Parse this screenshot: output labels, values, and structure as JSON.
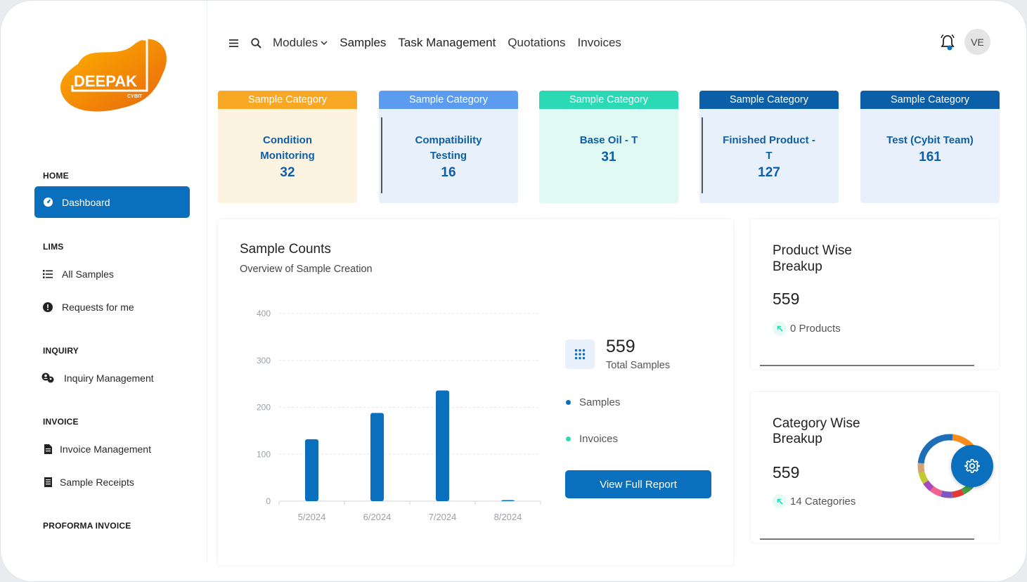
{
  "brand": {
    "name": "DEEPAK",
    "sub": "CYBIT"
  },
  "sidebar": {
    "sections": [
      {
        "title": "HOME",
        "items": [
          {
            "label": "Dashboard",
            "icon": "dashboard-icon",
            "active": true
          }
        ]
      },
      {
        "title": "LIMS",
        "items": [
          {
            "label": "All Samples",
            "icon": "list-icon"
          },
          {
            "label": "Requests for me",
            "icon": "alert-circle-icon"
          }
        ]
      },
      {
        "title": "INQUIRY",
        "items": [
          {
            "label": "Inquiry Management",
            "icon": "chat-users-icon"
          }
        ]
      },
      {
        "title": "INVOICE",
        "items": [
          {
            "label": "Invoice Management",
            "icon": "document-icon"
          },
          {
            "label": "Sample Receipts",
            "icon": "receipt-icon"
          }
        ]
      },
      {
        "title": "PROFORMA INVOICE",
        "items": []
      }
    ]
  },
  "topbar": {
    "menu_icon": "hamburger-icon",
    "search_icon": "search-icon",
    "links": [
      "Modules",
      "Samples",
      "Task Management",
      "Quotations",
      "Invoices"
    ],
    "avatar": "VE"
  },
  "categories": [
    {
      "header": "Sample Category",
      "name": "Condition Monitoring",
      "count": "32",
      "header_color": "#f9a825",
      "bg": "#fdf3e1"
    },
    {
      "header": "Sample Category",
      "name": "Compatibility Testing",
      "count": "16",
      "header_color": "#5b9cf0",
      "bg": "#e8f0fb"
    },
    {
      "header": "Sample Category",
      "name": "Base Oil - T",
      "count": "31",
      "header_color": "#2bd9b5",
      "bg": "#e0f9f3"
    },
    {
      "header": "Sample Category",
      "name": "Finished Product - T",
      "count": "127",
      "header_color": "#0a5fa8",
      "bg": "#e8f0fb"
    },
    {
      "header": "Sample Category",
      "name": "Test (Cybit Team)",
      "count": "161",
      "header_color": "#0a5fa8",
      "bg": "#e8f0fb"
    }
  ],
  "sample_counts": {
    "title": "Sample Counts",
    "subtitle": "Overview of Sample Creation",
    "total": "559",
    "total_label": "Total Samples",
    "legend": [
      {
        "label": "Samples",
        "color": "#0a6fbd"
      },
      {
        "label": "Invoices",
        "color": "#2bd9b5"
      }
    ],
    "button": "View Full Report"
  },
  "chart_data": {
    "type": "bar",
    "categories": [
      "5/2024",
      "6/2024",
      "7/2024",
      "8/2024"
    ],
    "series": [
      {
        "name": "Samples",
        "values": [
          132,
          188,
          236,
          2
        ]
      }
    ],
    "yticks": [
      0,
      100,
      200,
      300,
      400
    ],
    "ylim": [
      0,
      400
    ],
    "grid": true,
    "colors": {
      "bar": "#0a6fbd"
    }
  },
  "product_breakup": {
    "title": "Product Wise Breakup",
    "total": "559",
    "count_label": "0 Products"
  },
  "category_breakup": {
    "title": "Category Wise Breakup",
    "total": "559",
    "count_label": "14 Categories",
    "donut": [
      {
        "value": 29,
        "color": "#fb8c1c"
      },
      {
        "value": 12,
        "color": "#43a047"
      },
      {
        "value": 6,
        "color": "#e53935"
      },
      {
        "value": 6,
        "color": "#7e57c2"
      },
      {
        "value": 6,
        "color": "#f06292"
      },
      {
        "value": 5,
        "color": "#ab47bc"
      },
      {
        "value": 6,
        "color": "#c0ca33"
      },
      {
        "value": 5,
        "color": "#d4a373"
      },
      {
        "value": 25,
        "color": "#1e6fb8"
      }
    ]
  }
}
